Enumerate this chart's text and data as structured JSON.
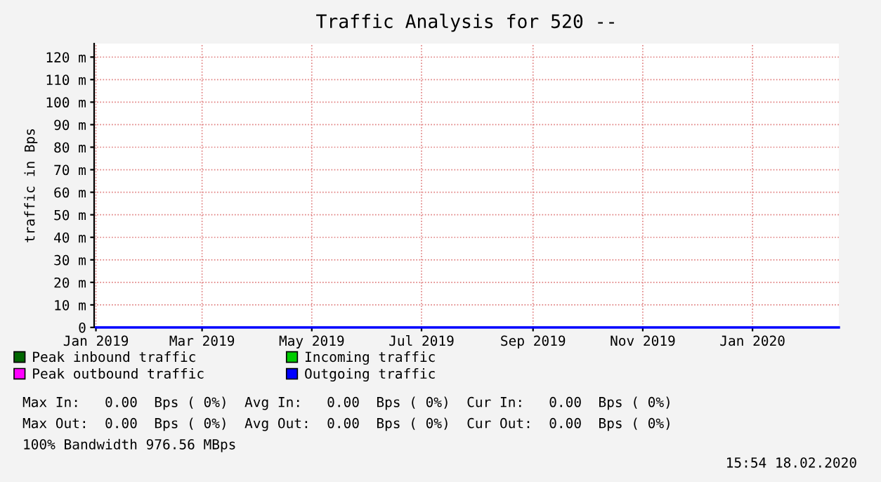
{
  "chart_data": {
    "type": "line",
    "title": "Traffic Analysis for 520 --",
    "ylabel": "traffic in Bps",
    "x": [
      "2019-01-01",
      "2020-02-18"
    ],
    "series": [
      {
        "name": "Peak inbound traffic",
        "color": "#006600",
        "values": [
          null,
          null
        ]
      },
      {
        "name": "Incoming traffic",
        "color": "#00cc00",
        "values": [
          null,
          null
        ]
      },
      {
        "name": "Peak outbound traffic",
        "color": "#ff00ff",
        "values": [
          null,
          null
        ]
      },
      {
        "name": "Outgoing traffic",
        "color": "#0000ff",
        "values": [
          0,
          0
        ]
      }
    ],
    "xlim": [
      "2018-12-31",
      "2020-02-18"
    ],
    "xticks": [
      {
        "value": "2019-01-01",
        "label": "Jan 2019"
      },
      {
        "value": "2019-03-01",
        "label": "Mar 2019"
      },
      {
        "value": "2019-05-01",
        "label": "May 2019"
      },
      {
        "value": "2019-07-01",
        "label": "Jul 2019"
      },
      {
        "value": "2019-09-01",
        "label": "Sep 2019"
      },
      {
        "value": "2019-11-01",
        "label": "Nov 2019"
      },
      {
        "value": "2020-01-01",
        "label": "Jan 2020"
      }
    ],
    "ylim": [
      0,
      126
    ],
    "yticks": [
      0,
      {
        "value": 10,
        "label": "10 m"
      },
      {
        "value": 20,
        "label": "20 m"
      },
      {
        "value": 30,
        "label": "30 m"
      },
      {
        "value": 40,
        "label": "40 m"
      },
      {
        "value": 50,
        "label": "50 m"
      },
      {
        "value": 60,
        "label": "60 m"
      },
      {
        "value": 70,
        "label": "70 m"
      },
      {
        "value": 80,
        "label": "80 m"
      },
      {
        "value": 90,
        "label": "90 m"
      },
      {
        "value": 100,
        "label": "100 m"
      },
      {
        "value": 110,
        "label": "110 m"
      },
      {
        "value": 120,
        "label": "120 m"
      }
    ],
    "grid": true,
    "legend": "bottom left",
    "annotations": [
      "Max In:   0.00  Bps ( 0%)  Avg In:   0.00  Bps ( 0%)  Cur In:   0.00  Bps ( 0%)",
      "Max Out:  0.00  Bps ( 0%)  Avg Out:  0.00  Bps ( 0%)  Cur Out:  0.00  Bps ( 0%)",
      "100% Bandwidth 976.56 MBps",
      "15:54 18.02.2020"
    ]
  }
}
